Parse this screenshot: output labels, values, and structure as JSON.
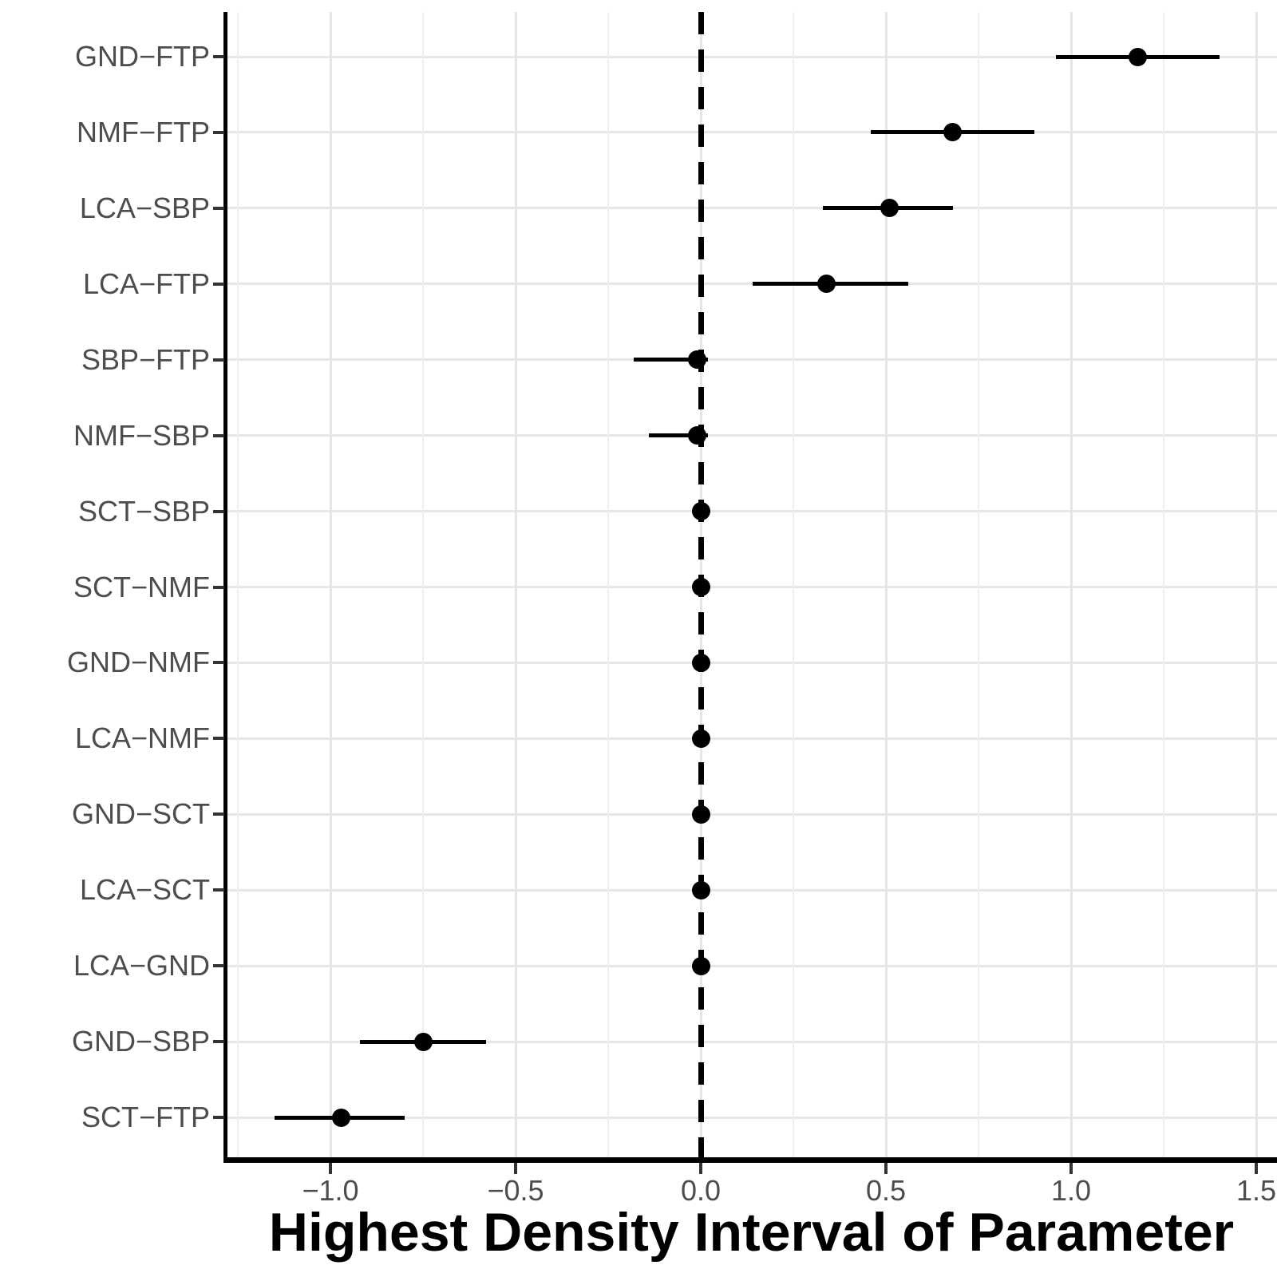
{
  "chart_data": {
    "type": "scatter",
    "subtype": "pointrange-forest-plot",
    "title": "",
    "xlabel": "Highest Density Interval of Parameter",
    "ylabel": "",
    "legend": "none",
    "grid": "major+minor vertical, major horizontal per category",
    "xlim": [
      -1.28,
      1.55
    ],
    "reference_line_x": 0,
    "x_axis": {
      "ticks": [
        -1.0,
        -0.5,
        0.0,
        0.5,
        1.0,
        1.5
      ],
      "tick_labels": [
        "−1.0",
        "−0.5",
        "0.0",
        "0.5",
        "1.0",
        "1.5"
      ],
      "minor_gridlines": [
        -1.25,
        -0.75,
        -0.25,
        0.25,
        0.75,
        1.25
      ]
    },
    "categories_top_to_bottom": [
      "GND−FTP",
      "NMF−FTP",
      "LCA−SBP",
      "LCA−FTP",
      "SBP−FTP",
      "NMF−SBP",
      "SCT−SBP",
      "SCT−NMF",
      "GND−NMF",
      "LCA−NMF",
      "GND−SCT",
      "LCA−SCT",
      "LCA−GND",
      "GND−SBP",
      "SCT−FTP"
    ],
    "points": [
      {
        "label": "GND−FTP",
        "estimate": 1.18,
        "lower": 0.96,
        "upper": 1.4
      },
      {
        "label": "NMF−FTP",
        "estimate": 0.68,
        "lower": 0.46,
        "upper": 0.9
      },
      {
        "label": "LCA−SBP",
        "estimate": 0.51,
        "lower": 0.33,
        "upper": 0.68
      },
      {
        "label": "LCA−FTP",
        "estimate": 0.34,
        "lower": 0.14,
        "upper": 0.56
      },
      {
        "label": "SBP−FTP",
        "estimate": -0.01,
        "lower": -0.18,
        "upper": 0.02
      },
      {
        "label": "NMF−SBP",
        "estimate": -0.01,
        "lower": -0.14,
        "upper": 0.02
      },
      {
        "label": "SCT−SBP",
        "estimate": 0.0,
        "lower": -0.02,
        "upper": 0.01
      },
      {
        "label": "SCT−NMF",
        "estimate": 0.0,
        "lower": -0.01,
        "upper": 0.01
      },
      {
        "label": "GND−NMF",
        "estimate": 0.0,
        "lower": -0.01,
        "upper": 0.01
      },
      {
        "label": "LCA−NMF",
        "estimate": 0.0,
        "lower": -0.01,
        "upper": 0.01
      },
      {
        "label": "GND−SCT",
        "estimate": 0.0,
        "lower": -0.01,
        "upper": 0.01
      },
      {
        "label": "LCA−SCT",
        "estimate": 0.0,
        "lower": -0.02,
        "upper": 0.01
      },
      {
        "label": "LCA−GND",
        "estimate": 0.0,
        "lower": -0.01,
        "upper": 0.01
      },
      {
        "label": "GND−SBP",
        "estimate": -0.75,
        "lower": -0.92,
        "upper": -0.58
      },
      {
        "label": "SCT−FTP",
        "estimate": -0.97,
        "lower": -1.15,
        "upper": -0.8
      }
    ]
  },
  "style": {
    "background": "#ffffff",
    "point_color": "#000000",
    "interval_color": "#000000",
    "reference_line_color": "#000000",
    "axis_line_color": "#000000",
    "tick_mark_color": "#333333",
    "tick_label_color": "#4d4d4d",
    "category_label_color": "#4d4d4d",
    "title_color": "#000000",
    "grid_major_color": "#e6e6e6",
    "grid_minor_color": "#efefef"
  }
}
